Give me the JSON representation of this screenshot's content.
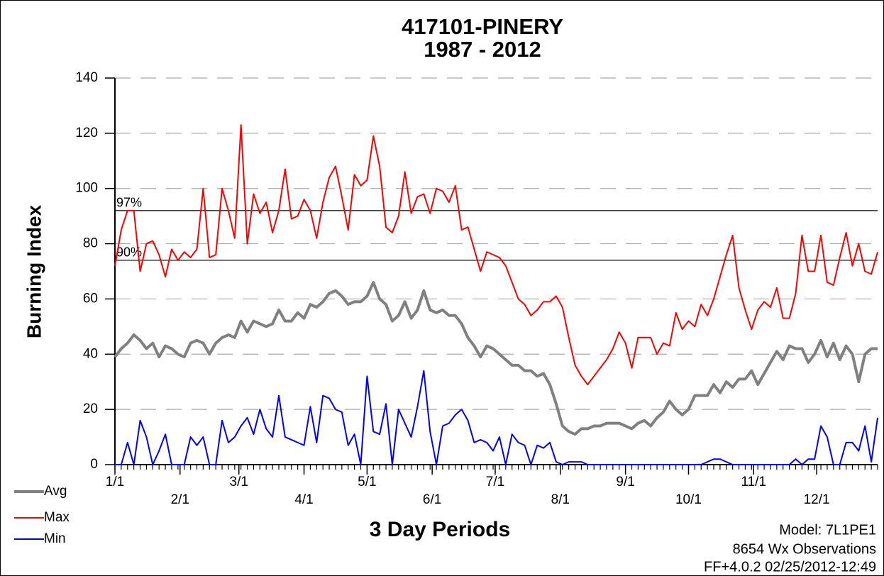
{
  "chart_data": {
    "type": "line",
    "title": "417101-PINERY",
    "subtitle": "1987 - 2012",
    "ylabel": "Burning Index",
    "xlabel": "3 Day Periods",
    "notes": [
      "Model: 7L1PE1",
      "8654 Wx Observations",
      "FF+4.0.2 02/25/2012-12:49"
    ],
    "x": [
      0,
      1,
      2,
      3,
      4,
      5,
      6,
      7,
      8,
      9,
      10,
      11,
      12,
      13,
      14,
      15,
      16,
      17,
      18,
      19,
      20,
      21,
      22,
      23,
      24,
      25,
      26,
      27,
      28,
      29,
      30,
      31,
      32,
      33,
      34,
      35,
      36,
      37,
      38,
      39,
      40,
      41,
      42,
      43,
      44,
      45,
      46,
      47,
      48,
      49,
      50,
      51,
      52,
      53,
      54,
      55,
      56,
      57,
      58,
      59,
      60,
      61,
      62,
      63,
      64,
      65,
      66,
      67,
      68,
      69,
      70,
      71,
      72,
      73,
      74,
      75,
      76,
      77,
      78,
      79,
      80,
      81,
      82,
      83,
      84,
      85,
      86,
      87,
      88,
      89,
      90,
      91,
      92,
      93,
      94,
      95,
      96,
      97,
      98,
      99,
      100,
      101,
      102,
      103,
      104,
      105,
      106,
      107,
      108,
      109,
      110,
      111,
      112,
      113,
      114,
      115,
      116,
      117,
      118,
      119,
      120,
      121
    ],
    "xlim": [
      0,
      121
    ],
    "xticks": [
      {
        "value": 0,
        "label": "1/1"
      },
      {
        "value": 10.33,
        "label": "2/1"
      },
      {
        "value": 19.67,
        "label": "3/1"
      },
      {
        "value": 30,
        "label": "4/1"
      },
      {
        "value": 40,
        "label": "5/1"
      },
      {
        "value": 50.33,
        "label": "6/1"
      },
      {
        "value": 60.33,
        "label": "7/1"
      },
      {
        "value": 70.67,
        "label": "8/1"
      },
      {
        "value": 81,
        "label": "9/1"
      },
      {
        "value": 91,
        "label": "10/1"
      },
      {
        "value": 101.33,
        "label": "11/1"
      },
      {
        "value": 111.33,
        "label": "12/1"
      }
    ],
    "ylim": [
      0,
      140
    ],
    "yticks": [
      0,
      20,
      40,
      60,
      80,
      100,
      120,
      140
    ],
    "grid": true,
    "reference_lines": [
      {
        "label": "97%",
        "value": 92
      },
      {
        "label": "90%",
        "value": 74
      }
    ],
    "series": [
      {
        "name": "Avg",
        "color": "#808080",
        "values": [
          39,
          42,
          44,
          47,
          45,
          42,
          44,
          39,
          43,
          42,
          40,
          39,
          44,
          45,
          44,
          40,
          44,
          46,
          47,
          46,
          52,
          48,
          52,
          51,
          50,
          51,
          56,
          52,
          52,
          55,
          53,
          58,
          57,
          59,
          62,
          63,
          61,
          58,
          59,
          59,
          61,
          66,
          60,
          58,
          52,
          54,
          59,
          53,
          56,
          63,
          56,
          55,
          56,
          54,
          54,
          51,
          46,
          43,
          39,
          43,
          42,
          40,
          38,
          36,
          36,
          34,
          34,
          32,
          33,
          29,
          22,
          14,
          12,
          11,
          13,
          13,
          14,
          14,
          15,
          15,
          15,
          14,
          13,
          15,
          16,
          14,
          17,
          19,
          23,
          20,
          18,
          20,
          25,
          25,
          25,
          29,
          26,
          30,
          28,
          31,
          31,
          34,
          29,
          33,
          37,
          41,
          38,
          43,
          42,
          42,
          37,
          40,
          45,
          39,
          44,
          38,
          43,
          40,
          30,
          40,
          42,
          42
        ]
      },
      {
        "name": "Max",
        "color": "#ff0000",
        "values": [
          72,
          85,
          92,
          92,
          70,
          80,
          81,
          76,
          68,
          78,
          74,
          77,
          75,
          78,
          100,
          75,
          76,
          100,
          92,
          82,
          123,
          80,
          98,
          91,
          95,
          84,
          92,
          107,
          89,
          90,
          96,
          92,
          82,
          95,
          104,
          108,
          97,
          85,
          105,
          101,
          103,
          119,
          108,
          86,
          84,
          90,
          106,
          91,
          97,
          98,
          91,
          100,
          99,
          95,
          101,
          85,
          86,
          78,
          70,
          77,
          76,
          75,
          72,
          66,
          60,
          58,
          54,
          56,
          59,
          59,
          61,
          57,
          46,
          36,
          32,
          29,
          32,
          35,
          38,
          42,
          48,
          44,
          35,
          46,
          46,
          46,
          40,
          44,
          43,
          55,
          49,
          52,
          50,
          58,
          54,
          60,
          68,
          76,
          83,
          64,
          56,
          49,
          56,
          59,
          57,
          64,
          53,
          53,
          62,
          83,
          70,
          70,
          83,
          66,
          65,
          75,
          84,
          72,
          80,
          70,
          69,
          77
        ]
      },
      {
        "name": "Min",
        "color": "#0000ff",
        "values": [
          0,
          0,
          8,
          0,
          16,
          10,
          0,
          5,
          11,
          0,
          0,
          0,
          10,
          7,
          10,
          0,
          0,
          16,
          8,
          10,
          14,
          17,
          11,
          20,
          13,
          10,
          25,
          10,
          9,
          8,
          7,
          21,
          8,
          25,
          24,
          20,
          19,
          7,
          11,
          0,
          32,
          12,
          11,
          22,
          0,
          20,
          15,
          10,
          21,
          34,
          12,
          0,
          14,
          15,
          18,
          20,
          16,
          8,
          9,
          8,
          5,
          10,
          0,
          11,
          8,
          7,
          0,
          7,
          6,
          8,
          1,
          0,
          1,
          1,
          1,
          0,
          0,
          0,
          0,
          0,
          0,
          0,
          0,
          0,
          0,
          0,
          0,
          0,
          0,
          0,
          0,
          0,
          0,
          0,
          1,
          2,
          2,
          1,
          0,
          0,
          0,
          0,
          0,
          0,
          0,
          0,
          0,
          0,
          2,
          0,
          2,
          2,
          14,
          10,
          0,
          0,
          8,
          8,
          5,
          14,
          1,
          17
        ]
      }
    ]
  }
}
